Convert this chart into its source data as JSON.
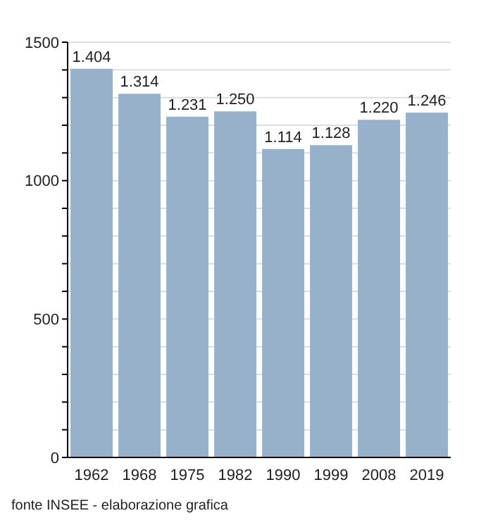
{
  "chart_data": {
    "type": "bar",
    "categories": [
      "1962",
      "1968",
      "1975",
      "1982",
      "1990",
      "1999",
      "2008",
      "2019"
    ],
    "values": [
      1404,
      1314,
      1231,
      1250,
      1114,
      1128,
      1220,
      1246
    ],
    "value_labels": [
      "1.404",
      "1.314",
      "1.231",
      "1.250",
      "1.114",
      "1.128",
      "1.220",
      "1.246"
    ],
    "color": "#97b1cb",
    "ylim": [
      0,
      1500
    ],
    "yticks": [
      0,
      {
        "value": 100,
        "label": null
      },
      {
        "value": 200,
        "label": null
      },
      {
        "value": 300,
        "label": null
      },
      {
        "value": 400,
        "label": null
      },
      500,
      {
        "value": 600,
        "label": null
      },
      {
        "value": 700,
        "label": null
      },
      {
        "value": 800,
        "label": null
      },
      {
        "value": 900,
        "label": null
      },
      1000,
      {
        "value": 1100,
        "label": null
      },
      {
        "value": 1200,
        "label": null
      },
      {
        "value": 1300,
        "label": null
      },
      {
        "value": 1400,
        "label": null
      },
      1500
    ],
    "grid": true,
    "annotations": [
      "fonte INSEE - elaborazione grafica"
    ]
  }
}
